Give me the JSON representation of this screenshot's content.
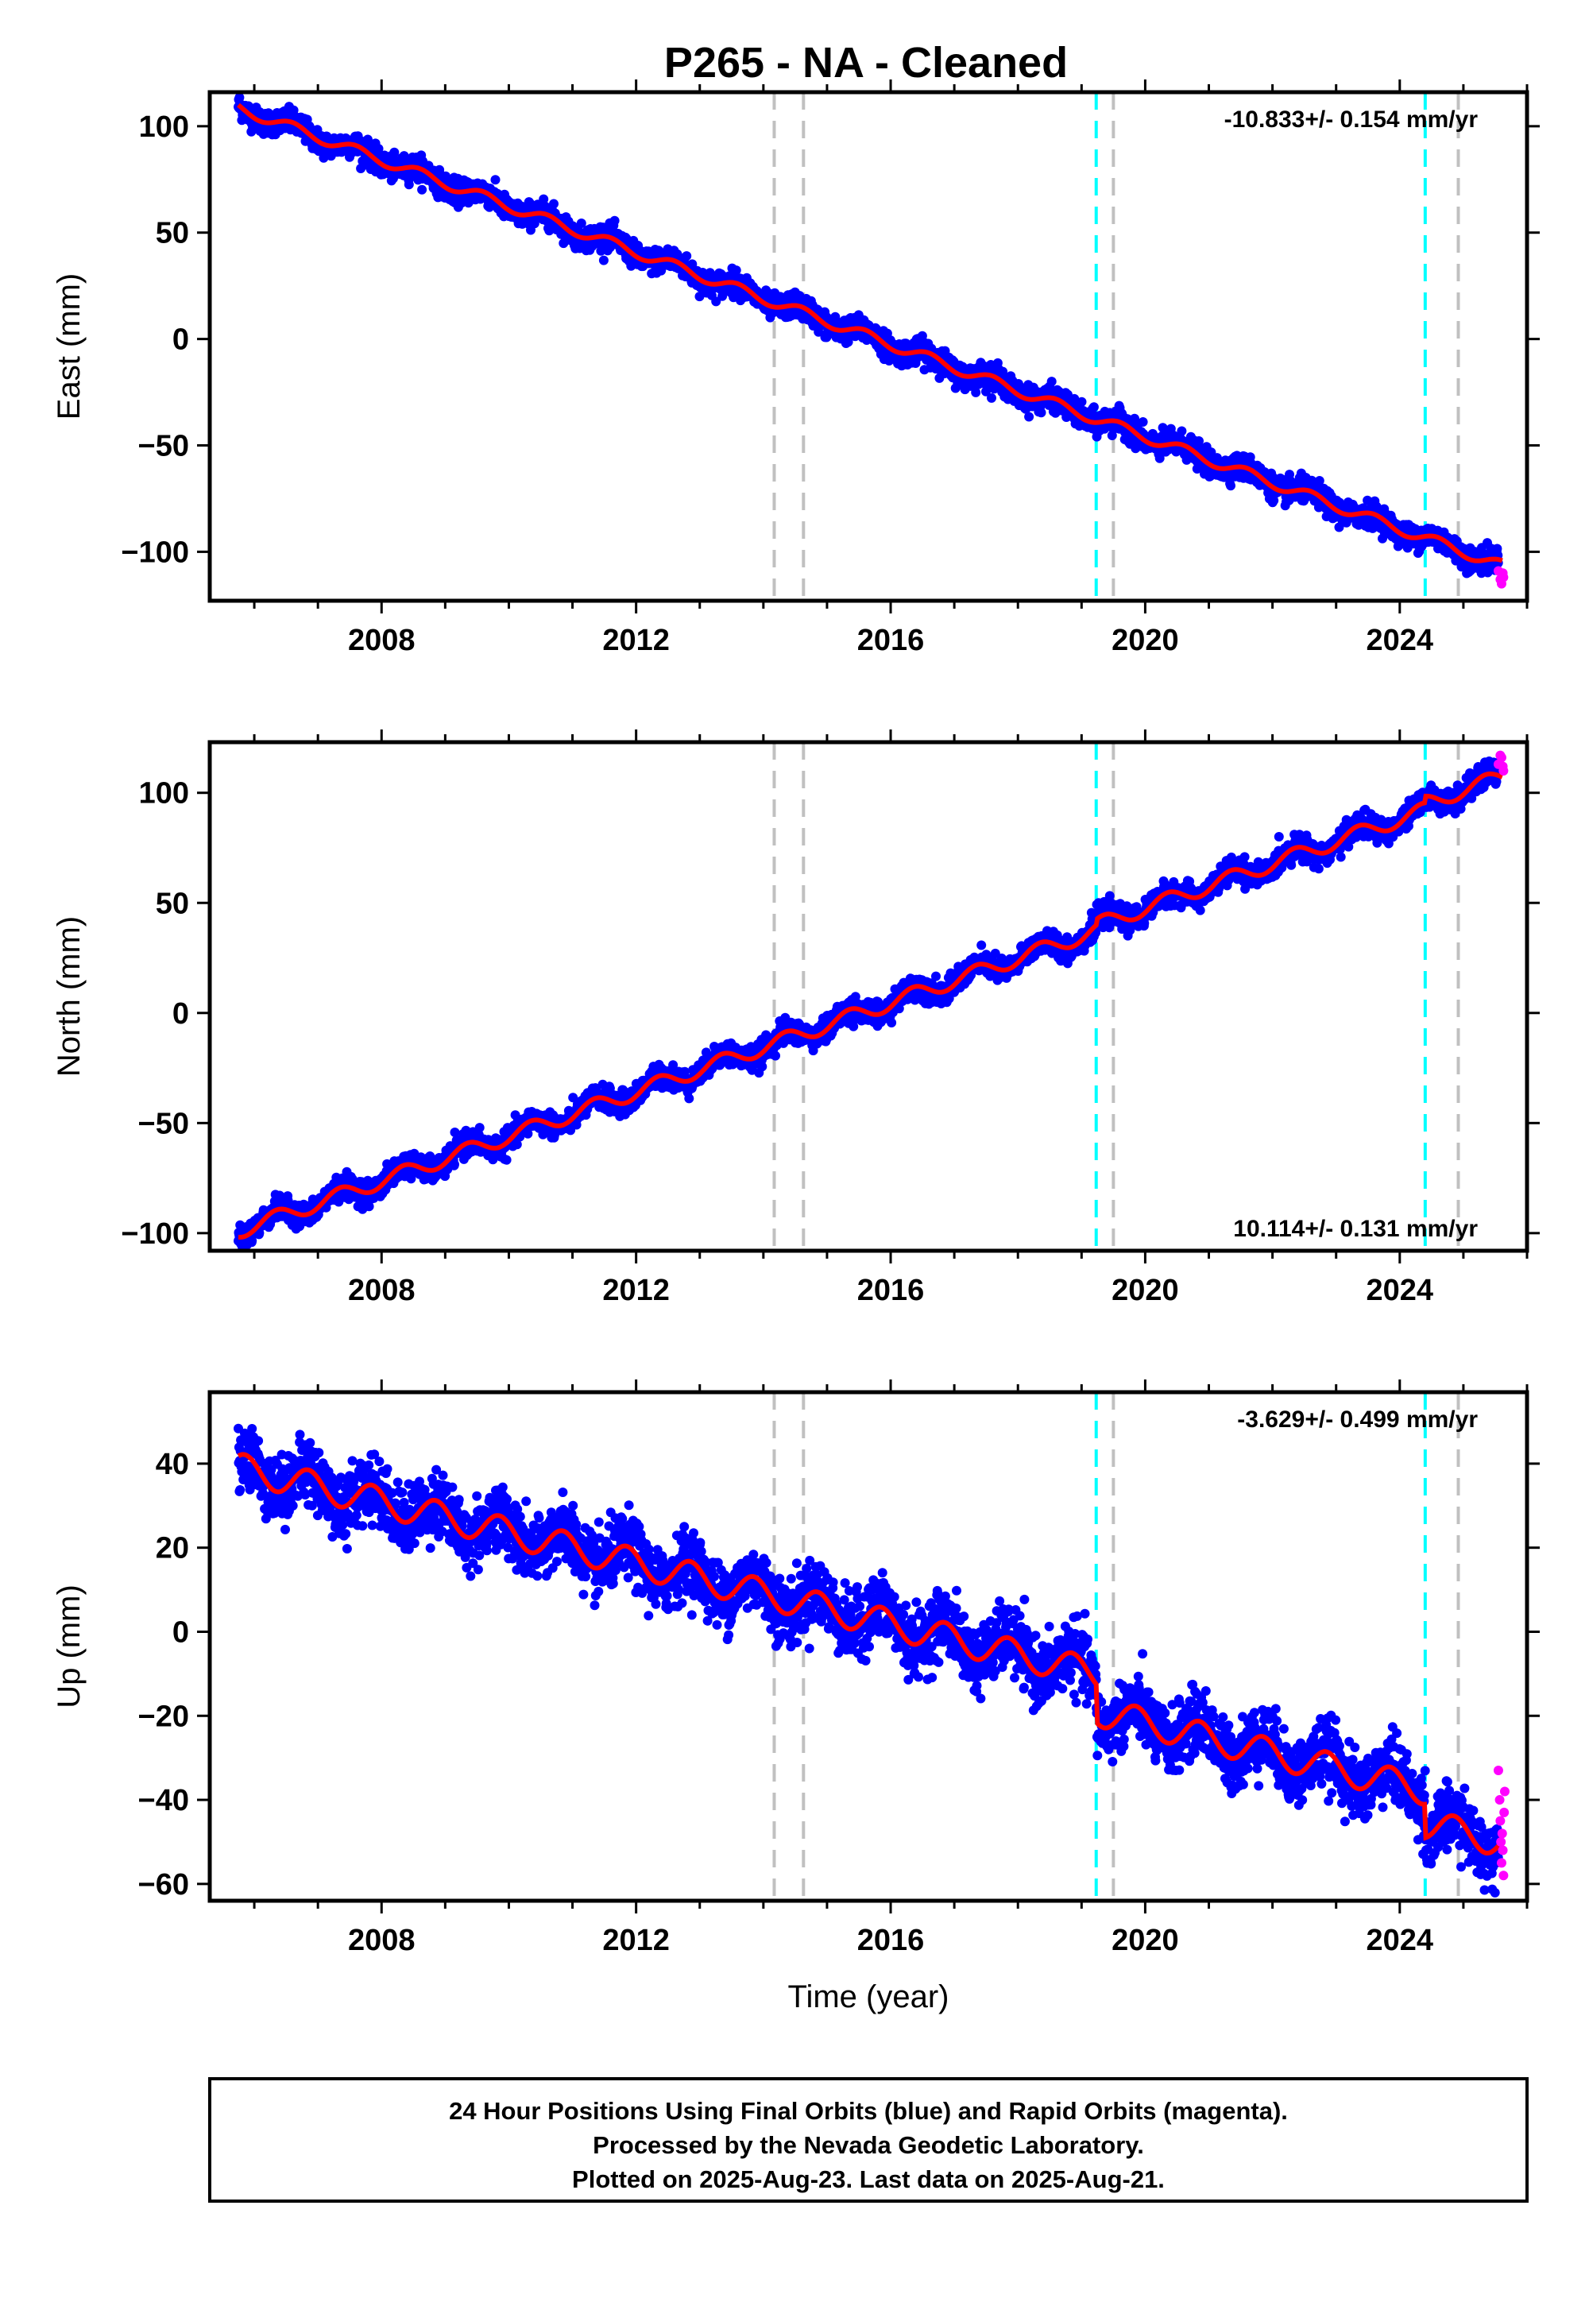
{
  "title": "P265  - NA - Cleaned",
  "colors": {
    "final_orbits": "#0000ff",
    "rapid_orbits": "#ff00ff",
    "model": "#ff0000",
    "equipment_change": "#c0c0c0",
    "earthquake": "#00ffff"
  },
  "events": {
    "gray": [
      2014.17,
      2014.63,
      2019.5,
      2024.92
    ],
    "cyan": [
      2019.23,
      2024.4
    ]
  },
  "footer": {
    "line1": "24 Hour Positions Using Final Orbits (blue) and Rapid Orbits (magenta).",
    "line2": "Processed by the Nevada Geodetic Laboratory.",
    "line3": "Plotted on 2025-Aug-23. Last data on 2025-Aug-21."
  },
  "chart_data": [
    {
      "type": "scatter",
      "component": "east",
      "ylabel": "East (mm)",
      "xlabel": "",
      "rate_label": "-10.833+/- 0.154 mm/yr",
      "rate_position": "top-right",
      "xlim": [
        2005.3,
        2026.0
      ],
      "ylim": [
        -123,
        116
      ],
      "x_ticks": [
        2008,
        2012,
        2016,
        2020,
        2024
      ],
      "y_ticks": [
        100,
        50,
        0,
        -50,
        -100
      ],
      "y_tick_labels": [
        "100",
        "50",
        "0",
        "−50",
        "−100"
      ],
      "trend": {
        "start_year": 2005.75,
        "start_value": 108.5,
        "rate": -10.833
      },
      "seasonal": {
        "amplitude": 2.5,
        "phase": 0.35
      },
      "offsets": [
        {
          "year": 2019.23,
          "value": 0
        },
        {
          "year": 2024.4,
          "value": 0
        }
      ],
      "scatter": 2.8,
      "model_points": [
        [
          2005.75,
          108
        ],
        [
          2007.0,
          95
        ],
        [
          2008.0,
          85
        ],
        [
          2009.0,
          74
        ],
        [
          2010.0,
          64
        ],
        [
          2011.0,
          53
        ],
        [
          2012.0,
          43
        ],
        [
          2013.0,
          31
        ],
        [
          2014.0,
          21
        ],
        [
          2014.6,
          13
        ],
        [
          2015.0,
          7
        ],
        [
          2016.0,
          -3
        ],
        [
          2017.0,
          -14
        ],
        [
          2018.0,
          -26
        ],
        [
          2019.0,
          -35
        ],
        [
          2019.5,
          -44
        ],
        [
          2020.0,
          -46
        ],
        [
          2021.0,
          -57
        ],
        [
          2022.0,
          -68
        ],
        [
          2023.0,
          -80
        ],
        [
          2024.0,
          -91
        ],
        [
          2024.5,
          -101
        ],
        [
          2025.0,
          -105
        ],
        [
          2025.6,
          -112
        ]
      ],
      "rapid_points": [
        [
          2025.55,
          -109
        ],
        [
          2025.58,
          -113
        ],
        [
          2025.6,
          -115
        ],
        [
          2025.62,
          -110
        ],
        [
          2025.63,
          -112
        ]
      ]
    },
    {
      "type": "scatter",
      "component": "north",
      "ylabel": "North (mm)",
      "xlabel": "",
      "rate_label": "10.114+/- 0.131 mm/yr",
      "rate_position": "bottom-right",
      "xlim": [
        2005.3,
        2026.0
      ],
      "ylim": [
        -108,
        123
      ],
      "x_ticks": [
        2008,
        2012,
        2016,
        2020,
        2024
      ],
      "y_ticks": [
        100,
        50,
        0,
        -50,
        -100
      ],
      "y_tick_labels": [
        "100",
        "50",
        "0",
        "−50",
        "−100"
      ],
      "trend": {
        "start_year": 2005.75,
        "start_value": -99,
        "rate": 10.114
      },
      "seasonal": {
        "amplitude": 3.5,
        "phase": 0.1
      },
      "offsets": [
        {
          "year": 2019.23,
          "value": 2.5
        },
        {
          "year": 2024.4,
          "value": 3
        }
      ],
      "scatter": 2.6,
      "model_points": [
        [
          2005.75,
          -100
        ],
        [
          2007.0,
          -88
        ],
        [
          2008.0,
          -78
        ],
        [
          2009.0,
          -68
        ],
        [
          2010.0,
          -58
        ],
        [
          2011.0,
          -47
        ],
        [
          2012.0,
          -38
        ],
        [
          2013.0,
          -28
        ],
        [
          2014.0,
          -18
        ],
        [
          2014.6,
          -6
        ],
        [
          2015.0,
          -9
        ],
        [
          2016.0,
          2
        ],
        [
          2017.0,
          10
        ],
        [
          2018.0,
          22
        ],
        [
          2019.0,
          32
        ],
        [
          2019.5,
          43
        ],
        [
          2020.0,
          45
        ],
        [
          2021.0,
          53
        ],
        [
          2022.0,
          64
        ],
        [
          2023.0,
          75
        ],
        [
          2024.0,
          86
        ],
        [
          2024.5,
          100
        ],
        [
          2025.0,
          104
        ],
        [
          2025.6,
          113
        ]
      ],
      "rapid_points": [
        [
          2025.55,
          113
        ],
        [
          2025.58,
          117
        ],
        [
          2025.6,
          116
        ],
        [
          2025.62,
          112
        ],
        [
          2025.63,
          110
        ]
      ]
    },
    {
      "type": "scatter",
      "component": "up",
      "ylabel": "Up (mm)",
      "xlabel": "Time (year)",
      "rate_label": "-3.629+/- 0.499 mm/yr",
      "rate_position": "top-right",
      "xlim": [
        2005.3,
        2026.0
      ],
      "ylim": [
        -64,
        57
      ],
      "x_ticks": [
        2008,
        2012,
        2016,
        2020,
        2024
      ],
      "y_ticks": [
        40,
        20,
        0,
        -20,
        -40,
        -60
      ],
      "y_tick_labels": [
        "40",
        "20",
        "0",
        "−20",
        "−40",
        "−60"
      ],
      "trend": {
        "start_year": 2005.75,
        "start_value": 39,
        "rate": -3.629
      },
      "seasonal": {
        "amplitude": 3.5,
        "phase": 0.6
      },
      "offsets": [
        {
          "year": 2019.23,
          "value": -9
        },
        {
          "year": 2024.4,
          "value": -8
        }
      ],
      "scatter": 3.8,
      "model_points": [
        [
          2005.75,
          38
        ],
        [
          2006.2,
          42
        ],
        [
          2007.0,
          37
        ],
        [
          2008.0,
          33
        ],
        [
          2009.0,
          28
        ],
        [
          2010.0,
          24
        ],
        [
          2011.0,
          20
        ],
        [
          2012.0,
          16
        ],
        [
          2013.0,
          12
        ],
        [
          2014.0,
          8
        ],
        [
          2015.0,
          0
        ],
        [
          2016.0,
          -4
        ],
        [
          2017.0,
          -8
        ],
        [
          2018.0,
          -12
        ],
        [
          2019.0,
          -14
        ],
        [
          2019.5,
          -22
        ],
        [
          2020.0,
          -21
        ],
        [
          2021.0,
          -24
        ],
        [
          2022.0,
          -27
        ],
        [
          2023.0,
          -31
        ],
        [
          2024.0,
          -35
        ],
        [
          2024.5,
          -48
        ],
        [
          2025.0,
          -45
        ],
        [
          2025.6,
          -49
        ]
      ],
      "rapid_points": [
        [
          2025.55,
          -33
        ],
        [
          2025.57,
          -40
        ],
        [
          2025.58,
          -45
        ],
        [
          2025.59,
          -50
        ],
        [
          2025.6,
          -55
        ],
        [
          2025.61,
          -48
        ],
        [
          2025.62,
          -52
        ],
        [
          2025.63,
          -58
        ],
        [
          2025.64,
          -43
        ],
        [
          2025.65,
          -38
        ]
      ]
    }
  ]
}
